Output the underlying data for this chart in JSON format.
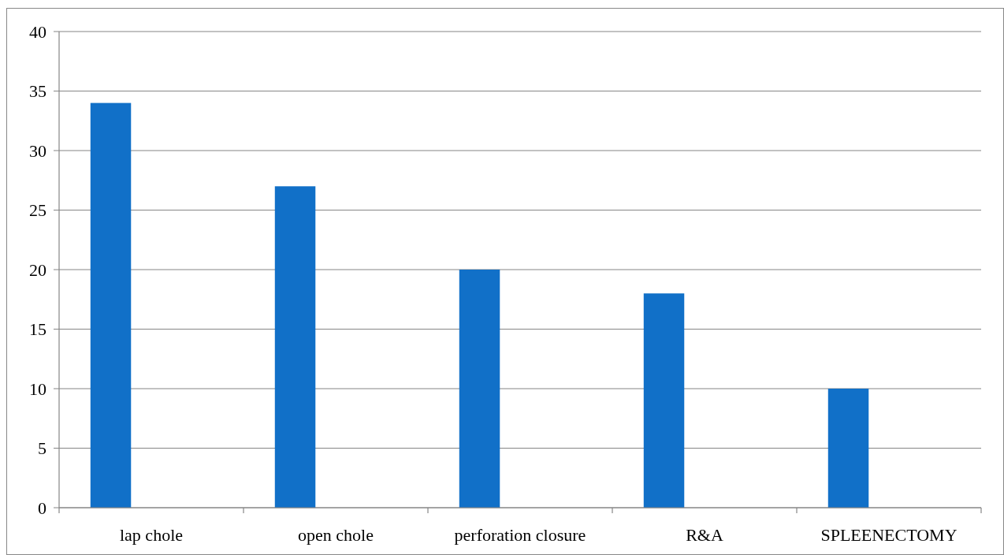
{
  "chart_data": {
    "type": "bar",
    "categories": [
      "lap chole",
      "open chole",
      "perforation closure",
      "R&A",
      "SPLEENECTOMY"
    ],
    "values": [
      34,
      27,
      20,
      18,
      10
    ],
    "color": "#1170c8",
    "ylim": [
      0,
      40
    ],
    "yticks": [
      0,
      5,
      10,
      15,
      20,
      25,
      30,
      35,
      40
    ],
    "grid": "y"
  }
}
